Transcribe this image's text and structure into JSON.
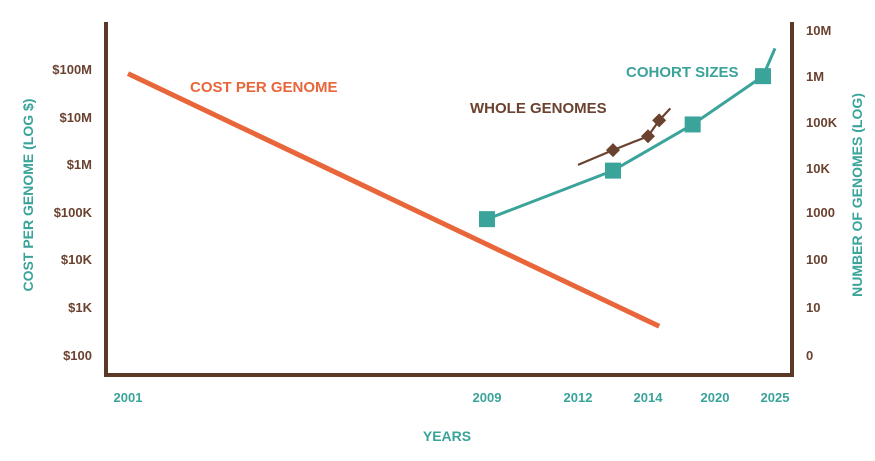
{
  "colors": {
    "axis": "#5a3a26",
    "teal": "#3aa39a",
    "cost": "#e8663a",
    "whole": "#6b4230",
    "tick_left": "#6b4230",
    "tick_bottom": "#3aa39a"
  },
  "chart_data": {
    "type": "line",
    "xlabel": "YEARS",
    "ylabel_left": "COST PER GENOME (LOG $)",
    "ylabel_right": "NUMBER OF GENOMES (LOG)",
    "x_ticks": [
      "2001",
      "2009",
      "2012",
      "2014",
      "2020",
      "2025"
    ],
    "y_left_ticks": [
      "$100",
      "$1K",
      "$10K",
      "$100K",
      "$1M",
      "$10M",
      "$100M"
    ],
    "y_right_ticks": [
      "0",
      "10",
      "100",
      "1000",
      "10K",
      "100K",
      "1M",
      "10M"
    ],
    "series": [
      {
        "name": "COST PER GENOME",
        "axis": "left",
        "points": [
          {
            "x": "2001",
            "y": 80000000
          },
          {
            "x": "2015",
            "y": 400
          }
        ]
      },
      {
        "name": "WHOLE GENOMES",
        "axis": "right",
        "points": [
          {
            "x": "2012",
            "y": 12000
          },
          {
            "x": "2013",
            "y": 25000
          },
          {
            "x": "2014",
            "y": 50000
          },
          {
            "x": "2015",
            "y": 110000
          },
          {
            "x": "2016",
            "y": 200000
          }
        ],
        "markers": [
          1,
          2,
          3
        ]
      },
      {
        "name": "COHORT SIZES",
        "axis": "right",
        "points": [
          {
            "x": "2009",
            "y": 800
          },
          {
            "x": "2013",
            "y": 9000
          },
          {
            "x": "2018",
            "y": 90000
          },
          {
            "x": "2024",
            "y": 1000000
          },
          {
            "x": "2025",
            "y": 4000000
          }
        ],
        "markers": [
          0,
          1,
          2,
          3
        ]
      }
    ]
  }
}
